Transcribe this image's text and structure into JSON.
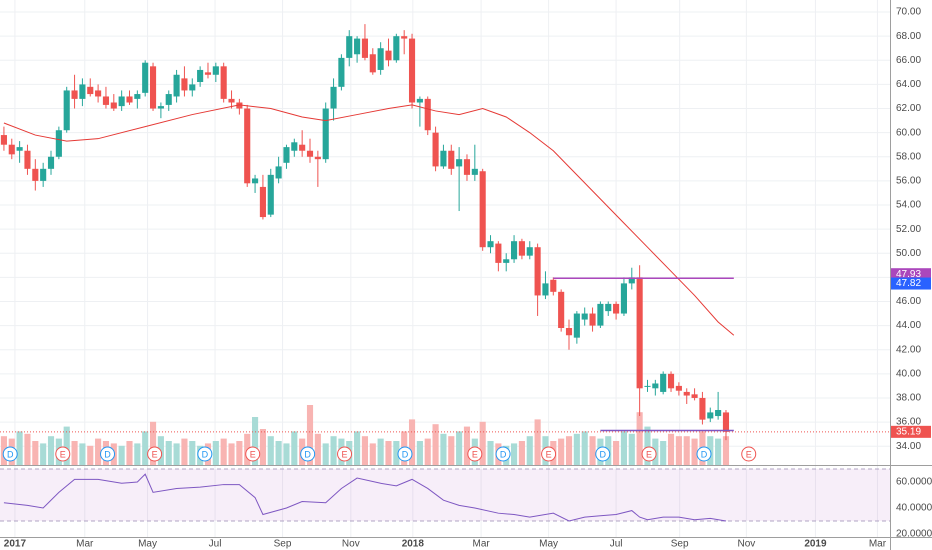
{
  "chart_data": {
    "type": "candlestick",
    "xlim": [
      -0.5,
      112.9
    ],
    "xticks": [
      {
        "value": 1.4,
        "label": "2017"
      },
      {
        "value": 10.3,
        "label": "Mar"
      },
      {
        "value": 18.3,
        "label": "May"
      },
      {
        "value": 26.9,
        "label": "Jul"
      },
      {
        "value": 35.5,
        "label": "Sep"
      },
      {
        "value": 44.2,
        "label": "Nov"
      },
      {
        "value": 52.1,
        "label": "2018"
      },
      {
        "value": 60.8,
        "label": "Mar"
      },
      {
        "value": 69.4,
        "label": "May"
      },
      {
        "value": 78,
        "label": "Jul"
      },
      {
        "value": 86.1,
        "label": "Sep"
      },
      {
        "value": 94.6,
        "label": "Nov"
      },
      {
        "value": 103.4,
        "label": "2019"
      },
      {
        "value": 111.3,
        "label": "Mar"
      }
    ],
    "ylim": [
      32.44,
      71
    ],
    "yticks": [
      {
        "value": 34,
        "label": "34.00"
      },
      {
        "value": 36,
        "label": "36.00"
      },
      {
        "value": 38,
        "label": "38.00"
      },
      {
        "value": 40,
        "label": "40.00"
      },
      {
        "value": 42,
        "label": "42.00"
      },
      {
        "value": 44,
        "label": "44.00"
      },
      {
        "value": 46,
        "label": "46.00"
      },
      {
        "value": 48,
        "label": "48.00"
      },
      {
        "value": 50,
        "label": "50.00"
      },
      {
        "value": 52,
        "label": "52.00"
      },
      {
        "value": 54,
        "label": "54.00"
      },
      {
        "value": 56,
        "label": "56.00"
      },
      {
        "value": 58,
        "label": "58.00"
      },
      {
        "value": 60,
        "label": "60.00"
      },
      {
        "value": 62,
        "label": "62.00"
      },
      {
        "value": 64,
        "label": "64.00"
      },
      {
        "value": 66,
        "label": "66.00"
      },
      {
        "value": 68,
        "label": "68.00"
      },
      {
        "value": 70,
        "label": "70.00"
      }
    ],
    "grid": true,
    "up_color": "#26a69a",
    "down_color": "#ef5350",
    "open": [
      59.8,
      59.0,
      58.5,
      58.5,
      57.0,
      56.0,
      57.0,
      58.0,
      60.2,
      63.5,
      62.8,
      63.8,
      63.5,
      63.0,
      62.5,
      62.2,
      63.0,
      62.8,
      63.3,
      65.5,
      62.0,
      62.3,
      63.0,
      64.5,
      63.5,
      64.2,
      65.0,
      64.8,
      65.5,
      62.8,
      62.5,
      62.0,
      55.8,
      55.5,
      53.2,
      56.2,
      57.5,
      58.5,
      59.0,
      58.5,
      58.0,
      57.8,
      62.0,
      63.8,
      66.2,
      66.5,
      67.8,
      66.5,
      65.2,
      66.8,
      66.0,
      68.0,
      67.8,
      62.5,
      62.8,
      60.0,
      57.2,
      58.5,
      57.2,
      57.8,
      56.5,
      56.8,
      50.5,
      50.8,
      49.2,
      49.5,
      51.0,
      49.8,
      50.5,
      46.5,
      47.8,
      46.8,
      43.8,
      43.0,
      44.5,
      45.0,
      44.0,
      45.2,
      45.8,
      45.0,
      47.5,
      48.0,
      39.0,
      38.8,
      38.5,
      40.0,
      39.0,
      38.5,
      38.3,
      38.0,
      36.3,
      36.5,
      36.8
    ],
    "high": [
      60.5,
      59.5,
      59.3,
      59.0,
      57.8,
      57.5,
      58.5,
      60.5,
      63.8,
      64.8,
      64.5,
      64.5,
      64.0,
      63.8,
      63.2,
      63.5,
      63.5,
      63.5,
      66.0,
      65.8,
      62.5,
      63.5,
      65.2,
      65.5,
      64.5,
      65.5,
      65.8,
      65.8,
      65.8,
      63.5,
      62.8,
      62.3,
      56.5,
      56.5,
      57.0,
      58.0,
      59.0,
      59.5,
      60.2,
      59.5,
      58.5,
      62.5,
      64.5,
      66.5,
      68.5,
      68.0,
      69.0,
      67.0,
      67.5,
      67.8,
      68.2,
      68.5,
      68.2,
      63.0,
      63.0,
      60.5,
      59.0,
      59.0,
      58.8,
      58.2,
      59.0,
      57.0,
      51.5,
      51.0,
      50.0,
      51.5,
      51.2,
      51.0,
      50.8,
      48.5,
      48.0,
      47.0,
      44.5,
      45.2,
      45.5,
      45.5,
      46.0,
      46.0,
      46.0,
      48.0,
      48.8,
      49.0,
      39.5,
      39.5,
      40.2,
      40.2,
      39.3,
      38.8,
      38.8,
      38.5,
      37.2,
      38.5,
      37.0
    ],
    "low": [
      58.5,
      57.8,
      57.5,
      56.5,
      55.2,
      55.5,
      56.5,
      57.8,
      60.0,
      62.0,
      62.2,
      63.0,
      62.5,
      62.0,
      61.8,
      61.8,
      62.3,
      62.0,
      63.0,
      61.8,
      61.2,
      61.8,
      62.5,
      63.0,
      63.0,
      63.8,
      64.5,
      64.2,
      62.5,
      62.0,
      61.5,
      55.5,
      55.0,
      52.8,
      53.0,
      55.8,
      57.0,
      58.0,
      58.0,
      57.5,
      55.5,
      57.5,
      61.0,
      63.5,
      65.5,
      65.8,
      66.0,
      64.8,
      64.8,
      65.5,
      65.8,
      66.5,
      62.0,
      60.5,
      59.8,
      56.8,
      57.0,
      56.5,
      53.5,
      56.0,
      56.0,
      50.2,
      50.0,
      48.5,
      48.5,
      49.2,
      49.5,
      49.5,
      44.8,
      46.2,
      46.5,
      43.5,
      42.0,
      42.5,
      44.0,
      43.5,
      43.8,
      44.8,
      44.5,
      44.8,
      47.0,
      36.5,
      38.5,
      38.2,
      38.3,
      38.5,
      38.2,
      37.5,
      37.8,
      35.8,
      36.0,
      36.2,
      34.5
    ],
    "close": [
      59.0,
      58.2,
      58.8,
      57.0,
      56.0,
      57.0,
      58.0,
      60.2,
      63.5,
      62.8,
      64.0,
      63.2,
      63.0,
      62.3,
      62.0,
      63.0,
      62.5,
      63.2,
      65.8,
      62.0,
      62.2,
      63.2,
      64.8,
      63.5,
      64.0,
      65.2,
      64.8,
      65.5,
      62.8,
      62.5,
      62.0,
      55.8,
      56.2,
      53.0,
      56.5,
      57.2,
      58.8,
      59.2,
      58.5,
      58.0,
      57.8,
      62.0,
      63.8,
      66.2,
      68.0,
      67.8,
      66.2,
      65.0,
      67.0,
      66.0,
      68.0,
      67.8,
      62.5,
      62.8,
      60.2,
      57.2,
      58.5,
      57.0,
      57.8,
      56.5,
      57.0,
      50.5,
      51.0,
      49.2,
      49.5,
      51.0,
      49.8,
      50.5,
      46.5,
      47.5,
      46.8,
      43.8,
      43.2,
      45.0,
      45.0,
      44.0,
      45.8,
      45.8,
      45.0,
      47.5,
      48.0,
      38.8,
      39.0,
      39.2,
      40.0,
      38.8,
      38.6,
      38.2,
      38.0,
      36.2,
      36.8,
      37.0,
      35.19
    ],
    "volume": [
      12,
      11,
      14,
      13,
      10,
      9,
      12,
      11,
      16,
      10,
      9,
      8,
      11,
      10,
      9,
      8,
      10,
      9,
      14,
      18,
      12,
      10,
      9,
      11,
      10,
      8,
      9,
      10,
      11,
      9,
      10,
      13,
      20,
      15,
      12,
      10,
      9,
      14,
      11,
      25,
      13,
      9,
      12,
      11,
      10,
      14,
      12,
      9,
      11,
      10,
      10,
      14,
      19,
      10,
      11,
      17,
      13,
      12,
      14,
      16,
      11,
      18,
      10,
      9,
      8,
      9,
      10,
      12,
      19,
      12,
      10,
      11,
      12,
      13,
      14,
      12,
      11,
      12,
      10,
      14,
      13,
      22,
      16,
      11,
      10,
      13,
      12,
      12,
      11,
      14,
      12,
      11,
      12
    ],
    "moving_average": {
      "color": "#e53935",
      "x": [
        0,
        4,
        8,
        12,
        18,
        24,
        30,
        34,
        38,
        41,
        45,
        49,
        52,
        55,
        58,
        61,
        64,
        67,
        70,
        73,
        76,
        79,
        82,
        85,
        88,
        91,
        93
      ],
      "values": [
        60.8,
        59.8,
        59.3,
        59.5,
        60.5,
        61.5,
        62.3,
        62,
        61.3,
        61,
        61.5,
        62,
        62.3,
        61.8,
        61.5,
        62,
        61.3,
        60,
        58.5,
        56.5,
        54.5,
        52.5,
        50.5,
        48.5,
        46.5,
        44.3,
        43.2
      ]
    },
    "trend_lines": [
      {
        "value": 47.93,
        "x": [
          70,
          93
        ],
        "color": "#ab47bc"
      },
      {
        "value": 35.3,
        "x": [
          76,
          93
        ],
        "color": "#7e57c2"
      }
    ],
    "last_price": {
      "value": 35.19,
      "color": "#ef5350"
    },
    "price_tags": [
      {
        "value": 47.93,
        "color": "#ab47bc"
      },
      {
        "value": 47.82,
        "color": "#2962ff"
      },
      {
        "value": 35.19,
        "color": "#ef5350"
      }
    ],
    "events": [
      {
        "label": "D",
        "x": 0.8
      },
      {
        "label": "E",
        "x": 7.5
      },
      {
        "label": "D",
        "x": 13.2
      },
      {
        "label": "E",
        "x": 19.2
      },
      {
        "label": "D",
        "x": 25.6
      },
      {
        "label": "E",
        "x": 31.7
      },
      {
        "label": "D",
        "x": 38.7
      },
      {
        "label": "E",
        "x": 43.4
      },
      {
        "label": "D",
        "x": 51.1
      },
      {
        "label": "E",
        "x": 60
      },
      {
        "label": "D",
        "x": 63.6
      },
      {
        "label": "E",
        "x": 69.4
      },
      {
        "label": "D",
        "x": 76.3
      },
      {
        "label": "E",
        "x": 82.2
      },
      {
        "label": "D",
        "x": 89.2
      },
      {
        "label": "E",
        "x": 94.9
      }
    ],
    "rsi": {
      "color": "#7e57c2",
      "ylim": [
        17.7,
        71.5
      ],
      "band": [
        30,
        70
      ],
      "yticks": [
        {
          "value": 20,
          "label": "20.0000"
        },
        {
          "value": 40,
          "label": "40.0000"
        },
        {
          "value": 60,
          "label": "60.0000"
        }
      ],
      "x": [
        0,
        3,
        5,
        7,
        9,
        12,
        15,
        17,
        18,
        19,
        22,
        25,
        28,
        30,
        32,
        33,
        36,
        38,
        41,
        43,
        45,
        48,
        50,
        52,
        54,
        56,
        58,
        60,
        63,
        65,
        67,
        70,
        72,
        74,
        76,
        78,
        80,
        81,
        82,
        84,
        86,
        88,
        90,
        92
      ],
      "values": [
        44,
        42,
        40,
        52,
        62,
        62,
        59,
        60,
        66,
        52,
        55,
        56,
        58,
        58,
        48,
        35,
        40,
        45,
        44,
        55,
        63,
        59,
        57,
        62,
        55,
        46,
        42,
        40,
        36,
        35,
        33,
        36,
        30,
        33,
        34,
        35,
        38,
        33,
        31,
        33,
        33,
        31,
        32,
        30
      ]
    }
  }
}
